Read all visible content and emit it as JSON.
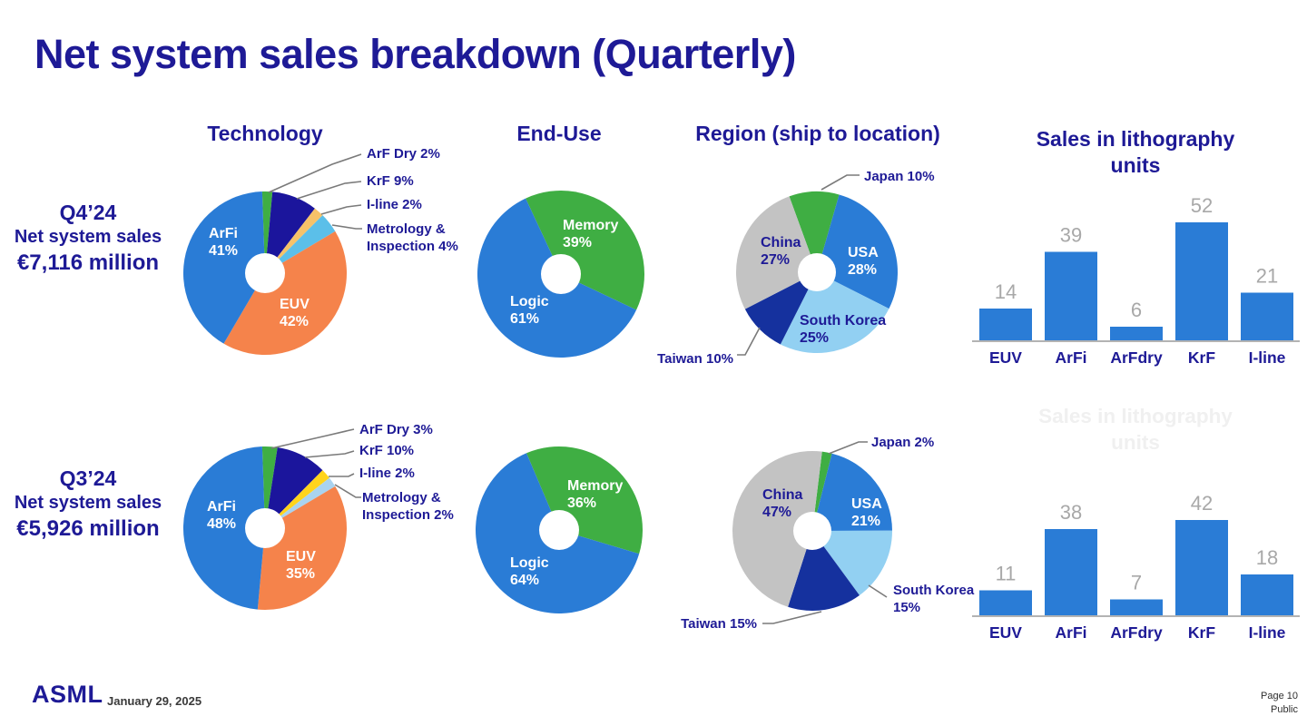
{
  "slide": {
    "title": "Net system sales breakdown (Quarterly)",
    "column_headers": [
      "Technology",
      "End-Use",
      "Region (ship to location)",
      "Sales in lithography units"
    ],
    "rows": [
      {
        "period": "Q4’24",
        "label": "Net system sales",
        "amount": "€7,116 million"
      },
      {
        "period": "Q3’24",
        "label": "Net system sales",
        "amount": "€5,926 million"
      }
    ],
    "footer": {
      "logo": "ASML",
      "date": "January 29, 2025",
      "page": "Page 10",
      "classification": "Public"
    }
  },
  "colors": {
    "navy_text": "#1e1a96",
    "blue": "#2a7cd6",
    "orange": "#f5834b",
    "green": "#3fae43",
    "dark_navy": "#1b159c",
    "tan": "#f6c269",
    "yellow": "#ffd41c",
    "sky_blue": "#5bbfe9",
    "pale_blue": "#a9d3ef",
    "light_blue": "#92d0f2",
    "taiwan_navy": "#15319e",
    "china_gray": "#c3c3c3",
    "bar_blue": "#2a7cd6",
    "value_gray": "#a8a8a8",
    "callout_line_gray": "#7a7a7a",
    "axis_gray": "#b3b3b3",
    "inside_label_white": "#ffffff"
  },
  "chart_data": [
    {
      "id": "q4_technology",
      "row": "Q4’24",
      "type": "pie",
      "title": "Technology",
      "slices": [
        {
          "label": "ArF Dry",
          "pct": 2,
          "color": "#3fae43"
        },
        {
          "label": "KrF",
          "pct": 9,
          "color": "#1b159c"
        },
        {
          "label": "I-line",
          "pct": 2,
          "color": "#f6c269"
        },
        {
          "label": "Metrology & Inspection",
          "pct": 4,
          "color": "#5bbfe9"
        },
        {
          "label": "EUV",
          "pct": 42,
          "color": "#f5834b"
        },
        {
          "label": "ArFi",
          "pct": 41,
          "color": "#2a7cd6"
        }
      ]
    },
    {
      "id": "q4_enduse",
      "row": "Q4’24",
      "type": "pie",
      "title": "End-Use",
      "slices": [
        {
          "label": "Memory",
          "pct": 39,
          "color": "#3fae43"
        },
        {
          "label": "Logic",
          "pct": 61,
          "color": "#2a7cd6"
        }
      ]
    },
    {
      "id": "q4_region",
      "row": "Q4’24",
      "type": "pie",
      "title": "Region (ship to location)",
      "slices": [
        {
          "label": "Japan",
          "pct": 10,
          "color": "#3fae43"
        },
        {
          "label": "USA",
          "pct": 28,
          "color": "#2a7cd6"
        },
        {
          "label": "South Korea",
          "pct": 25,
          "color": "#92d0f2"
        },
        {
          "label": "Taiwan",
          "pct": 10,
          "color": "#15319e"
        },
        {
          "label": "China",
          "pct": 27,
          "color": "#c3c3c3"
        }
      ]
    },
    {
      "id": "q4_units",
      "row": "Q4’24",
      "type": "bar",
      "title": "Sales in lithography units",
      "categories": [
        "EUV",
        "ArFi",
        "ArFdry",
        "KrF",
        "I-line"
      ],
      "values": [
        14,
        39,
        6,
        52,
        21
      ]
    },
    {
      "id": "q3_technology",
      "row": "Q3’24",
      "type": "pie",
      "title": "Technology",
      "slices": [
        {
          "label": "ArF Dry",
          "pct": 3,
          "color": "#3fae43"
        },
        {
          "label": "KrF",
          "pct": 10,
          "color": "#1b159c"
        },
        {
          "label": "I-line",
          "pct": 2,
          "color": "#ffd41c"
        },
        {
          "label": "Metrology & Inspection",
          "pct": 2,
          "color": "#a9d3ef"
        },
        {
          "label": "EUV",
          "pct": 35,
          "color": "#f5834b"
        },
        {
          "label": "ArFi",
          "pct": 48,
          "color": "#2a7cd6"
        }
      ]
    },
    {
      "id": "q3_enduse",
      "row": "Q3’24",
      "type": "pie",
      "title": "End-Use",
      "slices": [
        {
          "label": "Memory",
          "pct": 36,
          "color": "#3fae43"
        },
        {
          "label": "Logic",
          "pct": 64,
          "color": "#2a7cd6"
        }
      ]
    },
    {
      "id": "q3_region",
      "row": "Q3’24",
      "type": "pie",
      "title": "Region (ship to location)",
      "slices": [
        {
          "label": "Japan",
          "pct": 2,
          "color": "#3fae43"
        },
        {
          "label": "USA",
          "pct": 21,
          "color": "#2a7cd6"
        },
        {
          "label": "South Korea",
          "pct": 15,
          "color": "#92d0f2"
        },
        {
          "label": "Taiwan",
          "pct": 15,
          "color": "#15319e"
        },
        {
          "label": "China",
          "pct": 47,
          "color": "#c3c3c3"
        }
      ]
    },
    {
      "id": "q3_units",
      "row": "Q3’24",
      "type": "bar",
      "title": "Sales in lithography units",
      "ghost_title": "Sales in lithography units",
      "categories": [
        "EUV",
        "ArFi",
        "ArFdry",
        "KrF",
        "I-line"
      ],
      "values": [
        11,
        38,
        7,
        42,
        18
      ]
    }
  ]
}
